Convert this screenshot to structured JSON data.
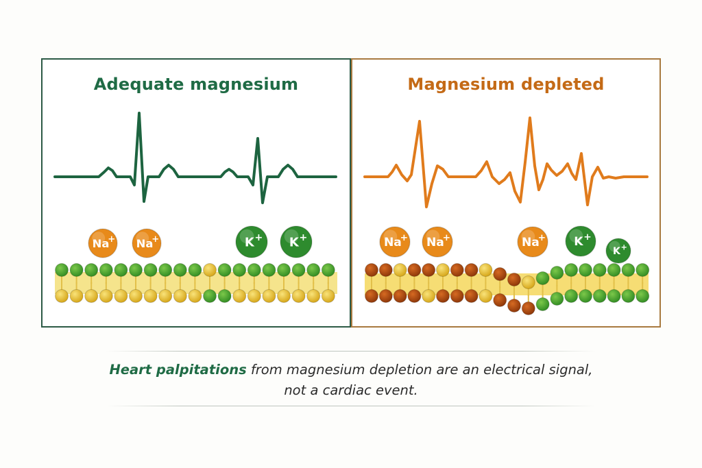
{
  "panels": {
    "left": {
      "title": "Adequate magnesium",
      "accent": "#1f6b45",
      "border": "#2c5a45"
    },
    "right": {
      "title": "Magnesium depleted",
      "accent": "#c46a16",
      "border": "#a8793f"
    }
  },
  "ions": {
    "left": [
      "Na+",
      "Na+",
      "K+",
      "K+"
    ],
    "right": [
      "Na+",
      "Na+",
      "Na+",
      "K+",
      "K+"
    ]
  },
  "ion_colors": {
    "Na+": "#e88a1a",
    "K+": "#2e8b2e"
  },
  "caption": {
    "emphasis": "Heart palpitations",
    "rest_line1": " from magnesium depletion are an electrical signal,",
    "line2": "not a cardiac event."
  }
}
